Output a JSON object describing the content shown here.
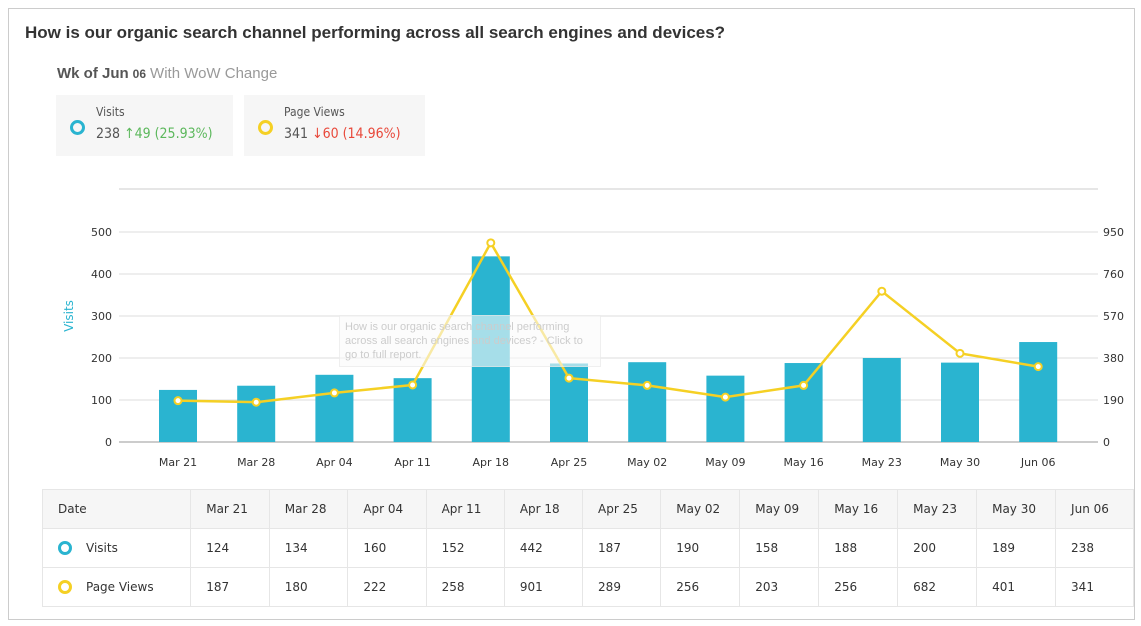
{
  "question": "How is our organic search channel performing across all search engines and devices?",
  "week": {
    "prefix": "Wk of Jun",
    "day": "06",
    "suffix": "With WoW Change"
  },
  "cards": [
    {
      "label": "Visits",
      "value": "238",
      "arrow": "↑",
      "change": "49 (25.93%)",
      "direction": "up",
      "color": "#2ab4d0"
    },
    {
      "label": "Page Views",
      "value": "341",
      "arrow": "↓",
      "change": "60 (14.96%)",
      "direction": "down",
      "color": "#f5d024"
    }
  ],
  "tooltip": "How is our organic search channel performing across all search engines and devices? - Click to go to full report.",
  "chart_data": {
    "type": "bar+line",
    "categories": [
      "Mar 21",
      "Mar 28",
      "Apr 04",
      "Apr 11",
      "Apr 18",
      "Apr 25",
      "May 02",
      "May 09",
      "May 16",
      "May 23",
      "May 30",
      "Jun 06"
    ],
    "series": [
      {
        "name": "Visits",
        "type": "bar",
        "axis": "left",
        "color": "#2ab4d0",
        "values": [
          124,
          134,
          160,
          152,
          442,
          187,
          190,
          158,
          188,
          200,
          189,
          238
        ]
      },
      {
        "name": "Page Views",
        "type": "line",
        "axis": "right",
        "color": "#f5d024",
        "values": [
          187,
          180,
          222,
          258,
          901,
          289,
          256,
          203,
          256,
          682,
          401,
          341
        ]
      }
    ],
    "ylabel": "Visits",
    "yticks_left": [
      0,
      100,
      200,
      300,
      400,
      500
    ],
    "ylim_left": [
      0,
      500
    ],
    "yticks_right": [
      0,
      190,
      380,
      570,
      760,
      950
    ],
    "ylim_right": [
      0,
      950
    ],
    "grid": true
  },
  "table": {
    "header": "Date",
    "rows": [
      {
        "label": "Visits",
        "color": "#2ab4d0"
      },
      {
        "label": "Page Views",
        "color": "#f5d024"
      }
    ]
  }
}
